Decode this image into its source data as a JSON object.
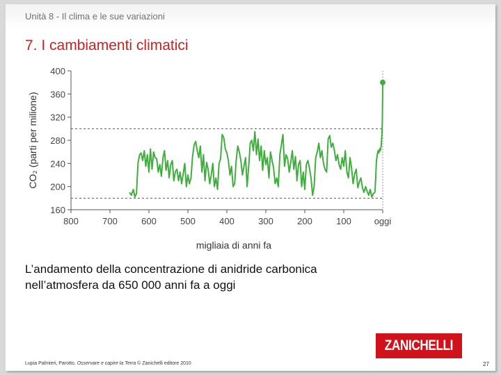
{
  "header": {
    "unit_title": "Unità 8 - Il clima e le sue variazioni",
    "slide_title": "7. I cambiamenti climatici"
  },
  "caption": {
    "line1": "L’andamento della concentrazione di anidride carbonica",
    "line2": "nell’atmosfera da 650 000 anni fa a oggi"
  },
  "footer": {
    "authors": "Lupia Palmieri, Parotto,",
    "book": "Osservare e capire la Terra",
    "publisher": "© Zanichelli editore 2010",
    "page_number": "27"
  },
  "logo": {
    "text": "ZANICHELLI",
    "color": "#d0121b"
  },
  "chart_data": {
    "type": "line",
    "title": "",
    "ylabel": "CO₂ (parti per milione)",
    "xlabel": "migliaia di anni fa",
    "xlim": [
      800,
      0
    ],
    "ylim": [
      160,
      400
    ],
    "x_ticks": [
      800,
      700,
      600,
      500,
      400,
      300,
      200,
      100,
      0
    ],
    "x_tick_labels": [
      "800",
      "700",
      "600",
      "500",
      "400",
      "300",
      "200",
      "100",
      "oggi"
    ],
    "y_ticks": [
      160,
      200,
      240,
      280,
      320,
      360,
      400
    ],
    "reference_lines": [
      300,
      180
    ],
    "grid": false,
    "colors": {
      "line": "#3fae3f",
      "axis": "#555555",
      "reference": "#555555"
    },
    "series": [
      {
        "x": [
          650,
          645,
          640,
          636,
          632,
          628,
          624,
          620,
          616,
          612,
          608,
          604,
          600,
          596,
          592,
          588,
          584,
          580,
          576,
          572,
          568,
          564,
          560,
          556,
          552,
          548,
          544,
          540,
          536,
          532,
          528,
          524,
          520,
          516,
          512,
          508,
          504,
          500,
          496,
          492,
          488,
          484,
          480,
          476,
          472,
          468,
          464,
          460,
          456,
          452,
          448,
          444,
          440,
          436,
          432,
          428,
          424,
          420,
          416,
          412,
          408,
          404,
          400,
          396,
          392,
          388,
          384,
          380,
          376,
          372,
          368,
          364,
          360,
          356,
          352,
          348,
          344,
          340,
          336,
          332,
          328,
          324,
          320,
          316,
          312,
          308,
          304,
          300,
          296,
          292,
          288,
          284,
          280,
          276,
          272,
          268,
          264,
          260,
          256,
          252,
          248,
          244,
          240,
          236,
          232,
          228,
          224,
          220,
          216,
          212,
          208,
          204,
          200,
          196,
          192,
          188,
          184,
          180,
          176,
          172,
          168,
          164,
          160,
          156,
          152,
          148,
          144,
          140,
          136,
          132,
          128,
          124,
          120,
          116,
          112,
          108,
          104,
          100,
          96,
          92,
          88,
          84,
          80,
          76,
          72,
          68,
          64,
          60,
          56,
          52,
          48,
          44,
          40,
          36,
          32,
          28,
          24,
          20,
          18,
          16,
          14,
          12,
          10,
          8,
          6,
          4,
          3,
          2,
          1,
          0.5,
          0
        ],
        "y": [
          190,
          185,
          195,
          182,
          188,
          240,
          255,
          258,
          245,
          262,
          235,
          255,
          225,
          265,
          230,
          260,
          250,
          248,
          225,
          238,
          218,
          250,
          262,
          228,
          245,
          215,
          238,
          245,
          210,
          226,
          230,
          210,
          225,
          205,
          222,
          240,
          200,
          220,
          205,
          215,
          252,
          272,
          278,
          262,
          250,
          270,
          225,
          255,
          210,
          242,
          230,
          205,
          220,
          240,
          200,
          215,
          195,
          240,
          248,
          290,
          285,
          265,
          258,
          245,
          220,
          235,
          200,
          205,
          245,
          270,
          260,
          245,
          220,
          235,
          250,
          200,
          235,
          275,
          280,
          262,
          295,
          255,
          282,
          245,
          270,
          228,
          262,
          238,
          250,
          215,
          260,
          245,
          232,
          205,
          215,
          200,
          255,
          272,
          290,
          235,
          255,
          248,
          225,
          242,
          262,
          230,
          252,
          210,
          238,
          245,
          200,
          225,
          195,
          238,
          245,
          232,
          215,
          185,
          200,
          250,
          260,
          275,
          250,
          262,
          240,
          230,
          225,
          282,
          288,
          268,
          275,
          262,
          245,
          255,
          238,
          230,
          250,
          235,
          262,
          225,
          215,
          250,
          232,
          205,
          222,
          230,
          198,
          208,
          215,
          198,
          190,
          200,
          192,
          185,
          195,
          182,
          188,
          190,
          215,
          245,
          255,
          262,
          258,
          265,
          262,
          270,
          280,
          290,
          310,
          340,
          380
        ]
      }
    ],
    "marker": {
      "x": 0,
      "y": 380
    }
  }
}
